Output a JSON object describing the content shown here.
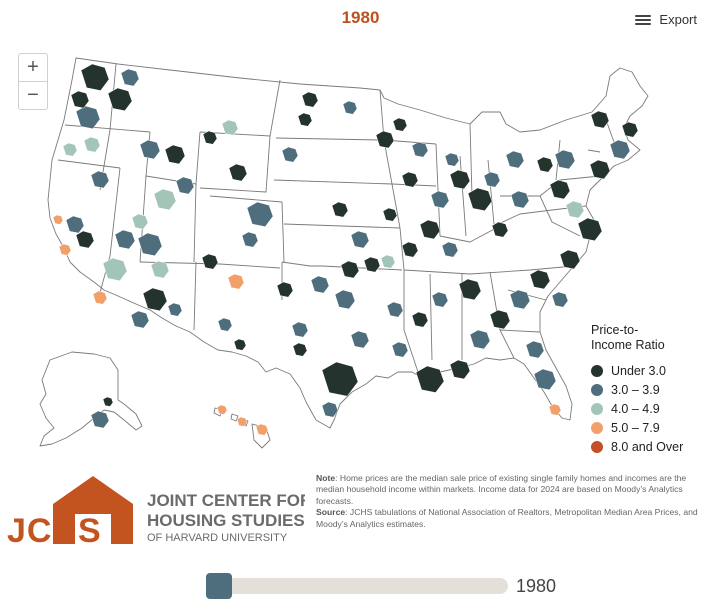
{
  "title": "1980",
  "export_label": "Export",
  "zoom": {
    "in_label": "+",
    "out_label": "−"
  },
  "legend": {
    "title_line1": "Price-to-",
    "title_line2": "Income Ratio",
    "items": [
      {
        "label": "Under 3.0",
        "color": "#25332f"
      },
      {
        "label": "3.0 – 3.9",
        "color": "#4e6e7e"
      },
      {
        "label": "4.0 – 4.9",
        "color": "#a3c5b7"
      },
      {
        "label": "5.0 – 7.9",
        "color": "#f2a06a"
      },
      {
        "label": "8.0 and Over",
        "color": "#c4502a"
      }
    ]
  },
  "note": {
    "note_label": "Note",
    "note_text": ": Home prices are the median sale price of existing single family homes and incomes are the median household income within markets. Income data for 2024 are based on Moody’s Analytics forecasts.",
    "source_label": "Source",
    "source_text": ": JCHS tabulations of National Association of Realtors, Metropolitan Median Area Prices, and Moody’s Analytics estimates."
  },
  "logo": {
    "letters": "JCHS",
    "line1": "JOINT CENTER FOR",
    "line2": "HOUSING STUDIES",
    "line3": "OF HARVARD UNIVERSITY",
    "color": "#c4541f"
  },
  "slider": {
    "value_label": "1980"
  },
  "colors": {
    "land": "#ffffff",
    "border": "#7a7a7a"
  }
}
